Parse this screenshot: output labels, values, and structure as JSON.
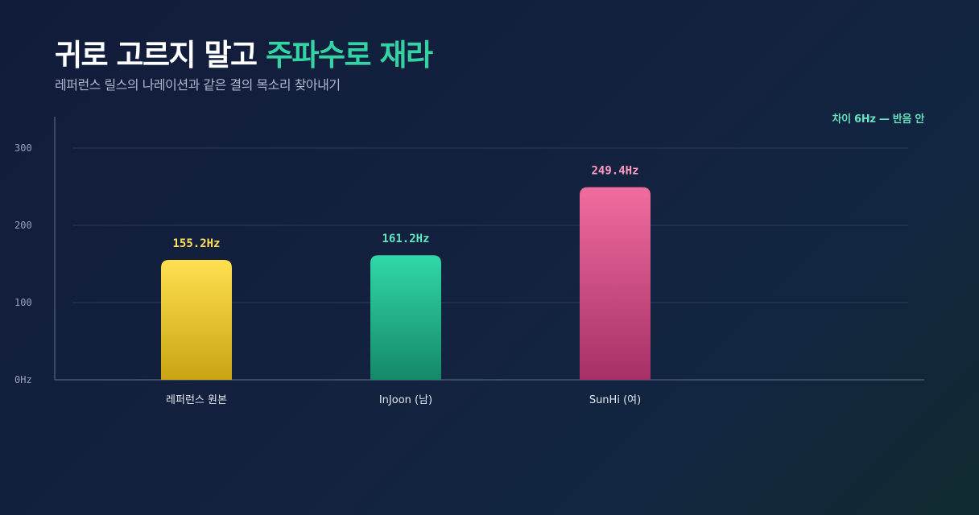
{
  "header": {
    "title_plain": "귀로 고르지 말고 ",
    "title_accent": "주파수로 재라",
    "subtitle": "레퍼런스 릴스의 나레이션과 같은 결의 목소리 찾아내기",
    "annotation": "차이 6Hz — 반음 안"
  },
  "colors": {
    "accent": "#34d3a4",
    "reference": "#f5d33a",
    "injoon": "#2bc79b",
    "sunhi": "#e8659a"
  },
  "chart_data": {
    "type": "bar",
    "categories": [
      "레퍼런스 원본",
      "InJoon (남)",
      "SunHi (여)"
    ],
    "values": [
      155.2,
      161.2,
      249.4
    ],
    "data_labels": [
      "155.2Hz",
      "161.2Hz",
      "249.4Hz"
    ],
    "ylim": [
      0,
      300
    ],
    "yticks": [
      0,
      100,
      200,
      300
    ],
    "ytick_labels": [
      "0Hz",
      "100",
      "200",
      "300"
    ],
    "grid": true,
    "xlabel": "",
    "ylabel": ""
  }
}
